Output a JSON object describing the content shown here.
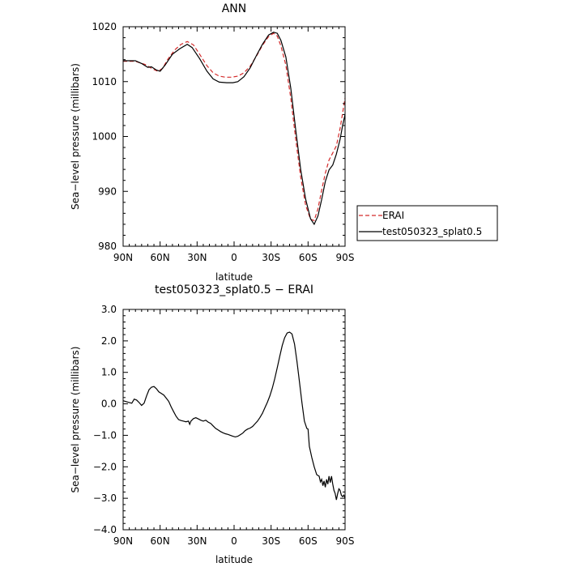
{
  "chart_data": [
    {
      "type": "line",
      "title": "ANN",
      "xlabel": "latitude",
      "ylabel": "Sea−level pressure (millibars)",
      "xlim": [
        90,
        -90
      ],
      "ylim": [
        980,
        1020
      ],
      "x_tick_values": [
        90,
        60,
        30,
        0,
        -30,
        -60,
        -90
      ],
      "x_tick_labels": [
        "90N",
        "60N",
        "30N",
        "0",
        "30S",
        "60S",
        "90S"
      ],
      "y_tick_values": [
        980,
        990,
        1000,
        1010,
        1020
      ],
      "y_tick_labels": [
        "980",
        "990",
        "1000",
        "1010",
        "1020"
      ],
      "legend": {
        "placement": "right-outside"
      },
      "series": [
        {
          "name": "ERAI",
          "color": "#d42a2a",
          "dash": true,
          "points": [
            [
              90,
              1013.7
            ],
            [
              80,
              1013.7
            ],
            [
              72,
              1013.1
            ],
            [
              66,
              1012.3
            ],
            [
              62,
              1011.9
            ],
            [
              58,
              1012.4
            ],
            [
              54,
              1014.0
            ],
            [
              48,
              1015.8
            ],
            [
              43,
              1016.8
            ],
            [
              38,
              1017.3
            ],
            [
              33,
              1016.7
            ],
            [
              28,
              1015.0
            ],
            [
              22,
              1012.9
            ],
            [
              17,
              1011.6
            ],
            [
              12,
              1011.0
            ],
            [
              7,
              1010.8
            ],
            [
              2,
              1010.8
            ],
            [
              -3,
              1011.0
            ],
            [
              -8,
              1011.6
            ],
            [
              -13,
              1012.8
            ],
            [
              -18,
              1014.6
            ],
            [
              -23,
              1016.6
            ],
            [
              -28,
              1018.2
            ],
            [
              -32,
              1018.8
            ],
            [
              -35,
              1018.3
            ],
            [
              -38,
              1016.5
            ],
            [
              -42,
              1013.0
            ],
            [
              -46,
              1007.0
            ],
            [
              -50,
              999.5
            ],
            [
              -54,
              992.6
            ],
            [
              -58,
              987.5
            ],
            [
              -62,
              984.9
            ],
            [
              -65,
              984.7
            ],
            [
              -68,
              986.8
            ],
            [
              -71,
              990.2
            ],
            [
              -74,
              993.3
            ],
            [
              -77,
              995.7
            ],
            [
              -80,
              997.0
            ],
            [
              -83,
              998.3
            ],
            [
              -86,
              1001.5
            ],
            [
              -90,
              1007.0
            ]
          ]
        },
        {
          "name": "test050323_splat0.5",
          "color": "#000000",
          "dash": false,
          "points": [
            [
              90,
              1013.8
            ],
            [
              80,
              1013.8
            ],
            [
              75,
              1013.3
            ],
            [
              70,
              1012.6
            ],
            [
              67,
              1012.7
            ],
            [
              63,
              1012.1
            ],
            [
              60,
              1011.9
            ],
            [
              56,
              1013.0
            ],
            [
              50,
              1015.0
            ],
            [
              44,
              1016.0
            ],
            [
              38,
              1016.8
            ],
            [
              34,
              1016.2
            ],
            [
              28,
              1014.2
            ],
            [
              22,
              1011.9
            ],
            [
              17,
              1010.5
            ],
            [
              12,
              1009.9
            ],
            [
              6,
              1009.8
            ],
            [
              1,
              1009.8
            ],
            [
              -3,
              1010.0
            ],
            [
              -8,
              1010.9
            ],
            [
              -13,
              1012.5
            ],
            [
              -18,
              1014.7
            ],
            [
              -23,
              1016.8
            ],
            [
              -28,
              1018.5
            ],
            [
              -32,
              1019.0
            ],
            [
              -35,
              1018.8
            ],
            [
              -38,
              1017.5
            ],
            [
              -42,
              1014.5
            ],
            [
              -46,
              1008.8
            ],
            [
              -50,
              1001.2
            ],
            [
              -54,
              994.0
            ],
            [
              -58,
              988.6
            ],
            [
              -62,
              985.0
            ],
            [
              -65,
              984.0
            ],
            [
              -68,
              985.5
            ],
            [
              -71,
              988.5
            ],
            [
              -74,
              991.8
            ],
            [
              -77,
              993.9
            ],
            [
              -80,
              994.8
            ],
            [
              -83,
              996.8
            ],
            [
              -86,
              999.5
            ],
            [
              -88,
              1002.0
            ],
            [
              -90,
              1004.0
            ]
          ]
        }
      ]
    },
    {
      "type": "line",
      "title": "test050323_splat0.5 − ERAI",
      "xlabel": "latitude",
      "ylabel": "Sea−level pressure (millibars)",
      "xlim": [
        90,
        -90
      ],
      "ylim": [
        -4,
        3
      ],
      "x_tick_values": [
        90,
        60,
        30,
        0,
        -30,
        -60,
        -90
      ],
      "x_tick_labels": [
        "90N",
        "60N",
        "30N",
        "0",
        "30S",
        "60S",
        "90S"
      ],
      "y_tick_values": [
        -4,
        -3,
        -2,
        -1,
        0,
        1,
        2,
        3
      ],
      "y_tick_labels": [
        "−4.0",
        "−3.0",
        "−2.0",
        "−1.0",
        "0.0",
        "1.0",
        "2.0",
        "3.0"
      ],
      "series": [
        {
          "color": "#000000",
          "dash": false,
          "points": [
            [
              90,
              0.1
            ],
            [
              86,
              0.05
            ],
            [
              83,
              0.02
            ],
            [
              81,
              0.15
            ],
            [
              79,
              0.12
            ],
            [
              77,
              0.04
            ],
            [
              75,
              -0.05
            ],
            [
              73,
              0.02
            ],
            [
              71,
              0.25
            ],
            [
              69,
              0.45
            ],
            [
              67,
              0.53
            ],
            [
              65,
              0.55
            ],
            [
              63,
              0.48
            ],
            [
              61,
              0.38
            ],
            [
              59,
              0.33
            ],
            [
              57,
              0.28
            ],
            [
              55,
              0.18
            ],
            [
              53,
              0.08
            ],
            [
              51,
              -0.1
            ],
            [
              49,
              -0.25
            ],
            [
              47,
              -0.4
            ],
            [
              45,
              -0.5
            ],
            [
              43,
              -0.53
            ],
            [
              41,
              -0.55
            ],
            [
              39,
              -0.57
            ],
            [
              37,
              -0.55
            ],
            [
              36,
              -0.65
            ],
            [
              35,
              -0.55
            ],
            [
              33,
              -0.47
            ],
            [
              31,
              -0.44
            ],
            [
              29,
              -0.48
            ],
            [
              27,
              -0.52
            ],
            [
              25,
              -0.55
            ],
            [
              23,
              -0.52
            ],
            [
              21,
              -0.58
            ],
            [
              19,
              -0.62
            ],
            [
              17,
              -0.7
            ],
            [
              15,
              -0.78
            ],
            [
              13,
              -0.83
            ],
            [
              11,
              -0.88
            ],
            [
              9,
              -0.92
            ],
            [
              7,
              -0.95
            ],
            [
              5,
              -0.97
            ],
            [
              3,
              -1.0
            ],
            [
              1,
              -1.03
            ],
            [
              -1,
              -1.05
            ],
            [
              -3,
              -1.03
            ],
            [
              -5,
              -0.98
            ],
            [
              -7,
              -0.93
            ],
            [
              -9,
              -0.85
            ],
            [
              -11,
              -0.8
            ],
            [
              -13,
              -0.77
            ],
            [
              -15,
              -0.72
            ],
            [
              -17,
              -0.63
            ],
            [
              -19,
              -0.55
            ],
            [
              -21,
              -0.43
            ],
            [
              -23,
              -0.3
            ],
            [
              -25,
              -0.12
            ],
            [
              -27,
              0.05
            ],
            [
              -29,
              0.25
            ],
            [
              -31,
              0.5
            ],
            [
              -33,
              0.8
            ],
            [
              -35,
              1.15
            ],
            [
              -37,
              1.5
            ],
            [
              -39,
              1.85
            ],
            [
              -41,
              2.1
            ],
            [
              -43,
              2.25
            ],
            [
              -45,
              2.28
            ],
            [
              -47,
              2.22
            ],
            [
              -49,
              1.9
            ],
            [
              -51,
              1.35
            ],
            [
              -53,
              0.7
            ],
            [
              -55,
              0.05
            ],
            [
              -57,
              -0.55
            ],
            [
              -59,
              -0.78
            ],
            [
              -60,
              -0.8
            ],
            [
              -61,
              -1.35
            ],
            [
              -63,
              -1.7
            ],
            [
              -65,
              -2.0
            ],
            [
              -67,
              -2.25
            ],
            [
              -69,
              -2.3
            ],
            [
              -70,
              -2.48
            ],
            [
              -71,
              -2.4
            ],
            [
              -72,
              -2.6
            ],
            [
              -73,
              -2.45
            ],
            [
              -74,
              -2.65
            ],
            [
              -75,
              -2.4
            ],
            [
              -76,
              -2.55
            ],
            [
              -77,
              -2.3
            ],
            [
              -78,
              -2.5
            ],
            [
              -79,
              -2.3
            ],
            [
              -80,
              -2.55
            ],
            [
              -81,
              -2.75
            ],
            [
              -82,
              -2.85
            ],
            [
              -83,
              -3.05
            ],
            [
              -84,
              -2.85
            ],
            [
              -85,
              -2.7
            ],
            [
              -86,
              -2.75
            ],
            [
              -87,
              -2.9
            ],
            [
              -88,
              -2.95
            ],
            [
              -89,
              -2.9
            ],
            [
              -90,
              -3.0
            ]
          ]
        }
      ]
    }
  ]
}
